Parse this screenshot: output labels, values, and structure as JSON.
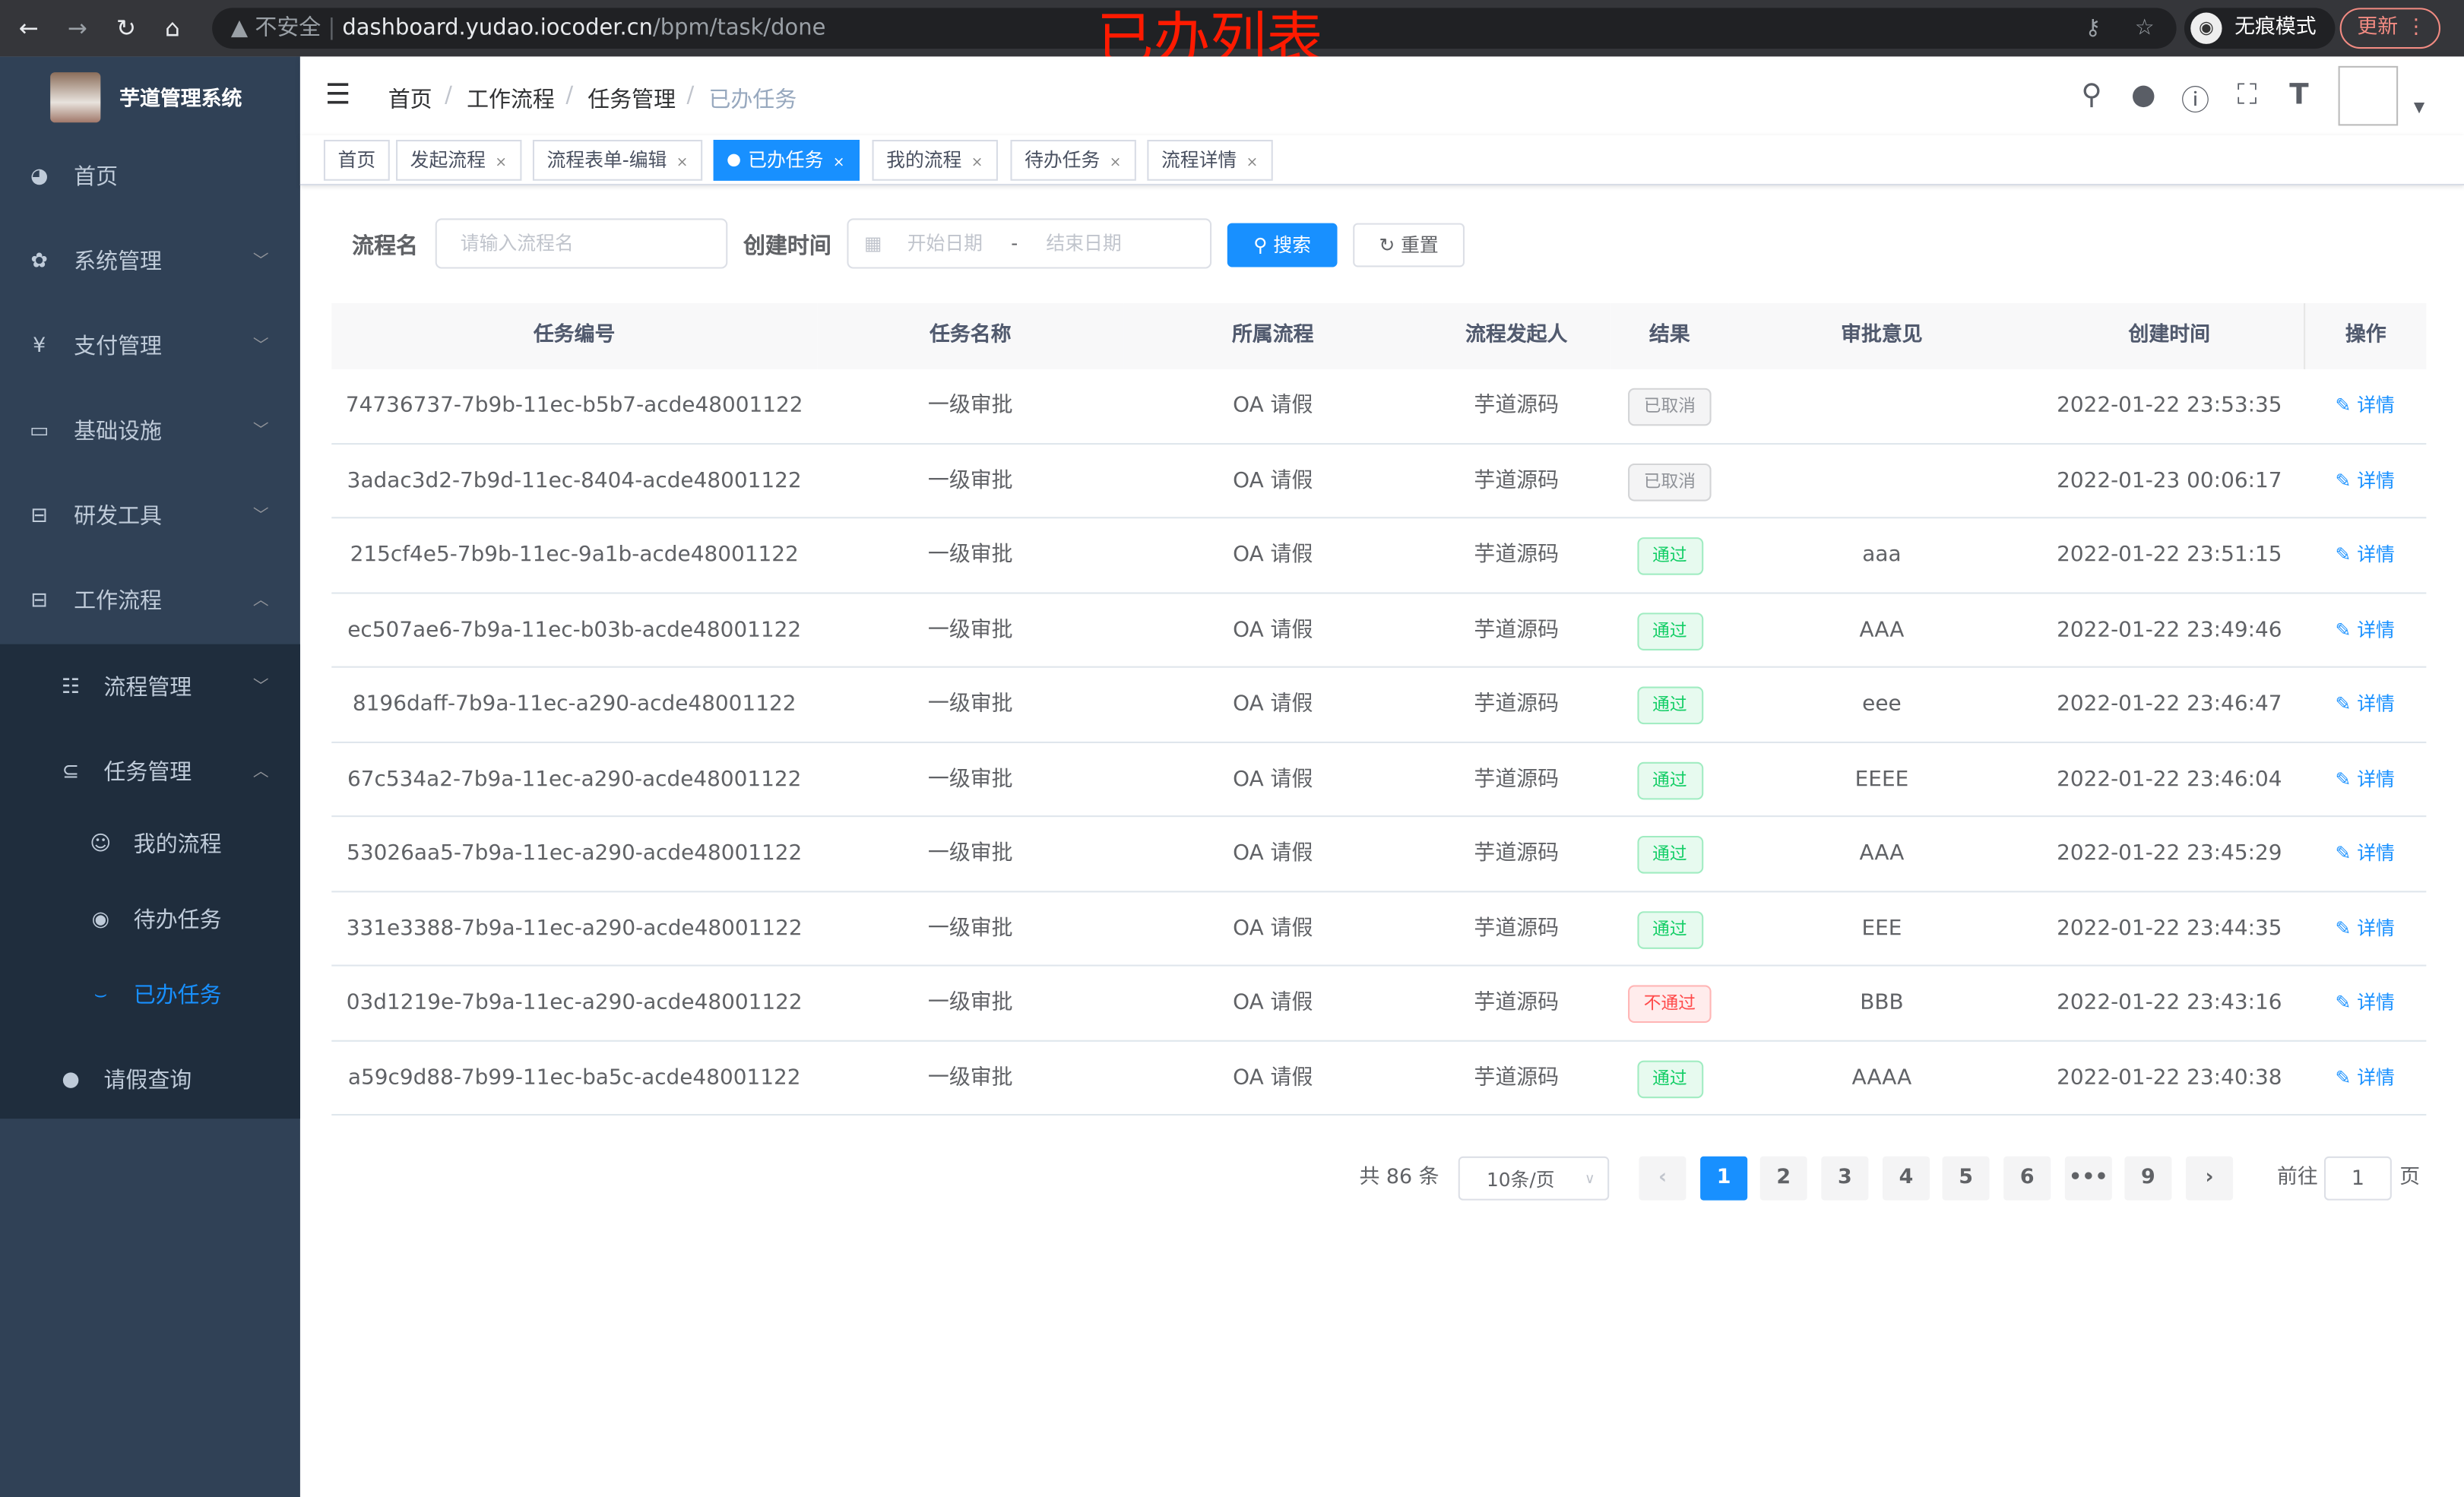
{
  "browser": {
    "security_label": "不安全",
    "url_host": "dashboard.yudao.iocoder.cn",
    "url_path": "/bpm/task/done",
    "incognito_label": "无痕模式",
    "update_label": "更新"
  },
  "overlay_title": "已办列表",
  "sidebar": {
    "brand": "芋道管理系统",
    "items": [
      {
        "label": "首页",
        "icon": "dashboard-icon"
      },
      {
        "label": "系统管理",
        "icon": "gear-icon"
      },
      {
        "label": "支付管理",
        "icon": "yen-icon"
      },
      {
        "label": "基础设施",
        "icon": "monitor-icon"
      },
      {
        "label": "研发工具",
        "icon": "toolbox-icon"
      },
      {
        "label": "工作流程",
        "icon": "toolbox-icon"
      },
      {
        "label": "流程管理",
        "icon": "list-icon"
      },
      {
        "label": "任务管理",
        "icon": "task-icon"
      },
      {
        "label": "我的流程",
        "icon": "face-icon"
      },
      {
        "label": "待办任务",
        "icon": "eye-icon"
      },
      {
        "label": "已办任务",
        "icon": "eye-closed-icon"
      },
      {
        "label": "请假查询",
        "icon": "user-icon"
      }
    ]
  },
  "breadcrumb": [
    "首页",
    "工作流程",
    "任务管理",
    "已办任务"
  ],
  "tags": [
    "首页",
    "发起流程",
    "流程表单-编辑",
    "已办任务",
    "我的流程",
    "待办任务",
    "流程详情"
  ],
  "filters": {
    "name_label": "流程名",
    "name_placeholder": "请输入流程名",
    "time_label": "创建时间",
    "start_placeholder": "开始日期",
    "range_sep": "-",
    "end_placeholder": "结束日期",
    "search_label": "搜索",
    "reset_label": "重置"
  },
  "table": {
    "headers": [
      "任务编号",
      "任务名称",
      "所属流程",
      "流程发起人",
      "结果",
      "审批意见",
      "创建时间",
      "操作"
    ],
    "action_label": "详情",
    "status_colors": {
      "已取消": "#909399",
      "通过": "#13ce66",
      "不通过": "#ff4949"
    },
    "rows": [
      {
        "id": "74736737-7b9b-11ec-b5b7-acde48001122",
        "name": "一级审批",
        "process": "OA 请假",
        "starter": "芋道源码",
        "result": "已取消",
        "comment": "",
        "time": "2022-01-22 23:53:35"
      },
      {
        "id": "3adac3d2-7b9d-11ec-8404-acde48001122",
        "name": "一级审批",
        "process": "OA 请假",
        "starter": "芋道源码",
        "result": "已取消",
        "comment": "",
        "time": "2022-01-23 00:06:17"
      },
      {
        "id": "215cf4e5-7b9b-11ec-9a1b-acde48001122",
        "name": "一级审批",
        "process": "OA 请假",
        "starter": "芋道源码",
        "result": "通过",
        "comment": "aaa",
        "time": "2022-01-22 23:51:15"
      },
      {
        "id": "ec507ae6-7b9a-11ec-b03b-acde48001122",
        "name": "一级审批",
        "process": "OA 请假",
        "starter": "芋道源码",
        "result": "通过",
        "comment": "AAA",
        "time": "2022-01-22 23:49:46"
      },
      {
        "id": "8196daff-7b9a-11ec-a290-acde48001122",
        "name": "一级审批",
        "process": "OA 请假",
        "starter": "芋道源码",
        "result": "通过",
        "comment": "eee",
        "time": "2022-01-22 23:46:47"
      },
      {
        "id": "67c534a2-7b9a-11ec-a290-acde48001122",
        "name": "一级审批",
        "process": "OA 请假",
        "starter": "芋道源码",
        "result": "通过",
        "comment": "EEEE",
        "time": "2022-01-22 23:46:04"
      },
      {
        "id": "53026aa5-7b9a-11ec-a290-acde48001122",
        "name": "一级审批",
        "process": "OA 请假",
        "starter": "芋道源码",
        "result": "通过",
        "comment": "AAA",
        "time": "2022-01-22 23:45:29"
      },
      {
        "id": "331e3388-7b9a-11ec-a290-acde48001122",
        "name": "一级审批",
        "process": "OA 请假",
        "starter": "芋道源码",
        "result": "通过",
        "comment": "EEE",
        "time": "2022-01-22 23:44:35"
      },
      {
        "id": "03d1219e-7b9a-11ec-a290-acde48001122",
        "name": "一级审批",
        "process": "OA 请假",
        "starter": "芋道源码",
        "result": "不通过",
        "comment": "BBB",
        "time": "2022-01-22 23:43:16"
      },
      {
        "id": "a59c9d88-7b99-11ec-ba5c-acde48001122",
        "name": "一级审批",
        "process": "OA 请假",
        "starter": "芋道源码",
        "result": "通过",
        "comment": "AAAA",
        "time": "2022-01-22 23:40:38"
      }
    ]
  },
  "pagination": {
    "total_label": "共 86 条",
    "page_size": "10条/页",
    "pages": [
      "1",
      "2",
      "3",
      "4",
      "5",
      "6",
      "•••",
      "9"
    ],
    "current": "1",
    "goto_label": "前往",
    "goto_value": "1",
    "page_suffix": "页"
  }
}
